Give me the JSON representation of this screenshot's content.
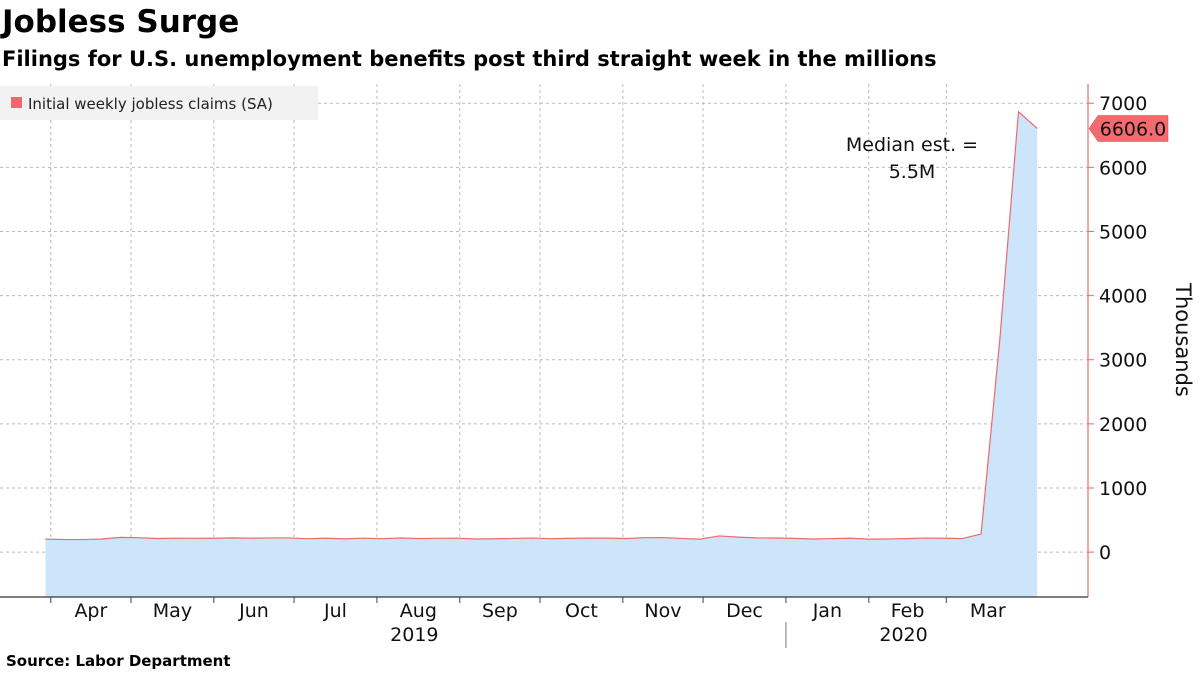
{
  "header": {
    "title": "Jobless Surge",
    "subtitle": "Filings for U.S. unemployment benefits post third straight week in the millions"
  },
  "footer": {
    "source": "Source: Labor Department"
  },
  "chart_data": {
    "type": "area",
    "title": "Jobless Surge",
    "subtitle": "Filings for U.S. unemployment benefits post third straight week in the millions",
    "ylabel": "Thousands",
    "ylim": [
      -700,
      7300
    ],
    "yticks": [
      0,
      1000,
      2000,
      3000,
      4000,
      5000,
      6000,
      7000
    ],
    "grid": true,
    "legend_position": "top-left",
    "colors": {
      "line": "#f0686b",
      "fill": "#cde5fb",
      "grid": "#bbbbbb",
      "badge": "#f36b6e"
    },
    "series": [
      {
        "name": "Initial weekly jobless claims (SA)",
        "x": [
          "2019-03-30",
          "2019-04-06",
          "2019-04-13",
          "2019-04-20",
          "2019-04-27",
          "2019-05-04",
          "2019-05-11",
          "2019-05-18",
          "2019-05-25",
          "2019-06-01",
          "2019-06-08",
          "2019-06-15",
          "2019-06-22",
          "2019-06-29",
          "2019-07-06",
          "2019-07-13",
          "2019-07-20",
          "2019-07-27",
          "2019-08-03",
          "2019-08-10",
          "2019-08-17",
          "2019-08-24",
          "2019-08-31",
          "2019-09-07",
          "2019-09-14",
          "2019-09-21",
          "2019-09-28",
          "2019-10-05",
          "2019-10-12",
          "2019-10-19",
          "2019-10-26",
          "2019-11-02",
          "2019-11-09",
          "2019-11-16",
          "2019-11-23",
          "2019-11-30",
          "2019-12-07",
          "2019-12-14",
          "2019-12-21",
          "2019-12-28",
          "2020-01-04",
          "2020-01-11",
          "2020-01-18",
          "2020-01-25",
          "2020-02-01",
          "2020-02-08",
          "2020-02-15",
          "2020-02-22",
          "2020-02-29",
          "2020-03-07",
          "2020-03-14",
          "2020-03-21",
          "2020-03-28",
          "2020-04-04"
        ],
        "values": [
          202,
          196,
          196,
          204,
          230,
          225,
          212,
          217,
          215,
          216,
          222,
          217,
          221,
          221,
          209,
          216,
          206,
          217,
          209,
          220,
          211,
          215,
          217,
          204,
          208,
          213,
          219,
          209,
          214,
          218,
          218,
          212,
          225,
          227,
          213,
          203,
          252,
          234,
          222,
          220,
          214,
          204,
          211,
          216,
          202,
          205,
          210,
          219,
          216,
          211,
          282,
          3307,
          6867,
          6606
        ]
      }
    ],
    "x_ticks": [
      "Apr",
      "May",
      "Jun",
      "Jul",
      "Aug",
      "Sep",
      "Oct",
      "Nov",
      "Dec",
      "Jan",
      "Feb",
      "Mar"
    ],
    "x_tick_dates": [
      "2019-04-01",
      "2019-05-01",
      "2019-06-01",
      "2019-07-01",
      "2019-08-01",
      "2019-09-01",
      "2019-10-01",
      "2019-11-01",
      "2019-12-01",
      "2020-01-01",
      "2020-02-01",
      "2020-03-01"
    ],
    "years": [
      {
        "label": "2019",
        "date": "2019-08-15"
      },
      {
        "label": "2020",
        "date": "2020-02-14"
      }
    ],
    "year_divider_date": "2020-01-01",
    "last_value_label": "6606.0",
    "annotation": {
      "line1": "Median est. =",
      "line2": "5.5M",
      "date": "2020-02-15",
      "y": 6500
    }
  }
}
